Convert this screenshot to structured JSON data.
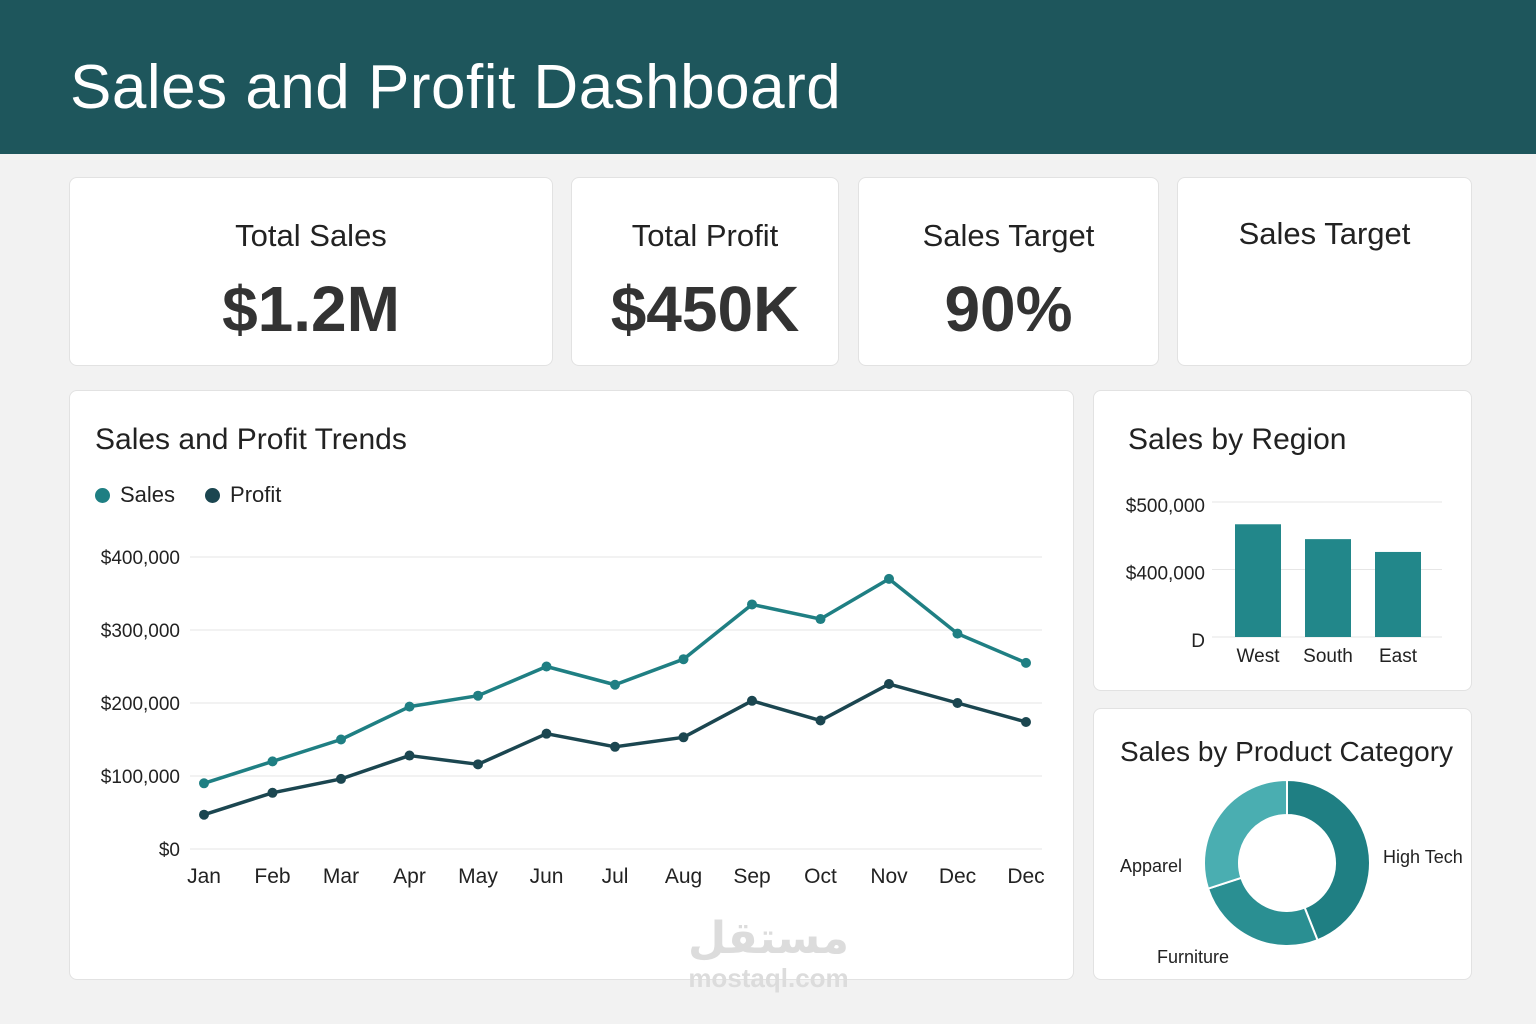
{
  "header": {
    "title": "Sales and Profit Dashboard"
  },
  "kpis": [
    {
      "label": "Total Sales",
      "value": "$1.2M"
    },
    {
      "label": "Total Profit",
      "value": "$450K"
    },
    {
      "label": "Sales Target",
      "value": "90%"
    },
    {
      "label": "Sales Target",
      "value": ""
    }
  ],
  "trends": {
    "title": "Sales and Profit Trends",
    "legend": [
      "Sales",
      "Profit"
    ]
  },
  "region": {
    "title": "Sales by Region"
  },
  "category": {
    "title": "Sales by Product Category"
  },
  "watermark": {
    "glyph": "مستقل",
    "text": "mostaql.com"
  },
  "colors": {
    "header": "#1e565c",
    "sales": "#1f7f83",
    "profit": "#1b4650",
    "bar": "#22878a",
    "donut_light": "#4aaeb1",
    "donut_mid": "#2a8f92",
    "donut_dark": "#1f7f83"
  },
  "chart_data": [
    {
      "type": "line",
      "title": "Sales and Profit Trends",
      "categories": [
        "Jan",
        "Feb",
        "Mar",
        "Apr",
        "May",
        "Jun",
        "Jul",
        "Aug",
        "Sep",
        "Oct",
        "Nov",
        "Dec",
        "Dec"
      ],
      "series": [
        {
          "name": "Sales",
          "values": [
            90000,
            120000,
            150000,
            195000,
            210000,
            250000,
            225000,
            260000,
            335000,
            315000,
            370000,
            295000,
            255000
          ]
        },
        {
          "name": "Profit",
          "values": [
            47000,
            77000,
            96000,
            128000,
            116000,
            158000,
            140000,
            153000,
            203000,
            176000,
            226000,
            200000,
            174000
          ]
        }
      ],
      "ylim": [
        0,
        400000
      ],
      "yticks": [
        0,
        100000,
        200000,
        300000,
        400000
      ],
      "ytick_labels": [
        "$0",
        "$100,000",
        "$200,000",
        "$300,000",
        "$400,000"
      ],
      "grid": true,
      "legend_position": "top-left"
    },
    {
      "type": "bar",
      "title": "Sales by Region",
      "categories": [
        "West",
        "South",
        "East"
      ],
      "values": [
        467000,
        445000,
        426000
      ],
      "ylim": [
        300000,
        500000
      ],
      "yticks": [
        300000,
        400000,
        500000
      ],
      "ytick_labels": [
        "D",
        "$400,000",
        "$500,000"
      ],
      "grid": true
    },
    {
      "type": "pie",
      "title": "Sales by Product Category",
      "labels": [
        "High Tech",
        "Furniture",
        "Apparel"
      ],
      "values": [
        44,
        26,
        30
      ],
      "donut": true
    }
  ]
}
